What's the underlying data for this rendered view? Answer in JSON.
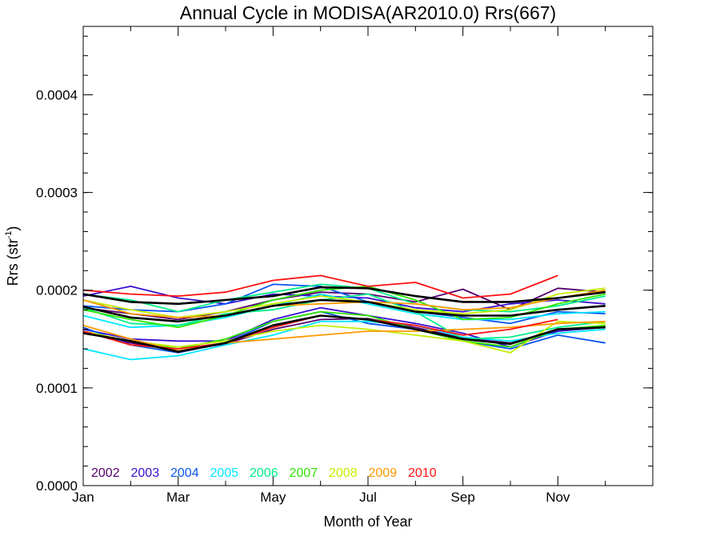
{
  "chart_data": {
    "type": "line",
    "title": "Annual Cycle in MODISA(AR2010.0) Rrs(667)",
    "xlabel": "Month of Year",
    "ylabel_main": "Rrs (str",
    "ylabel_sup": "-1",
    "ylabel_end": ")",
    "xlim": [
      1,
      13
    ],
    "ylim": [
      0,
      0.00047
    ],
    "x_ticks": [
      {
        "v": 1,
        "label": "Jan"
      },
      {
        "v": 3,
        "label": "Mar"
      },
      {
        "v": 5,
        "label": "May"
      },
      {
        "v": 7,
        "label": "Jul"
      },
      {
        "v": 9,
        "label": "Sep"
      },
      {
        "v": 11,
        "label": "Nov"
      }
    ],
    "y_ticks": [
      {
        "v": 0,
        "label": "0.0000"
      },
      {
        "v": 0.0001,
        "label": "0.0001"
      },
      {
        "v": 0.0002,
        "label": "0.0002"
      },
      {
        "v": 0.0003,
        "label": "0.0003"
      },
      {
        "v": 0.0004,
        "label": "0.0004"
      }
    ],
    "x": [
      1,
      2,
      3,
      4,
      5,
      6,
      7,
      8,
      9,
      10,
      11,
      12
    ],
    "legend_position": "bottom-left",
    "legend": [
      {
        "label": "2002",
        "color": "#55006e"
      },
      {
        "label": "2003",
        "color": "#3a10d0"
      },
      {
        "label": "2004",
        "color": "#0a55f0"
      },
      {
        "label": "2005",
        "color": "#00e6ff"
      },
      {
        "label": "2006",
        "color": "#00ef8a"
      },
      {
        "label": "2007",
        "color": "#2ee600"
      },
      {
        "label": "2008",
        "color": "#c2f000"
      },
      {
        "label": "2009",
        "color": "#ff9a00"
      },
      {
        "label": "2010",
        "color": "#ff1010"
      }
    ],
    "series": [
      {
        "color": "#55006e",
        "values": [
          0.000182,
          0.000176,
          0.00017,
          0.000178,
          0.00019,
          0.000198,
          0.000196,
          0.000188,
          0.000201,
          0.00018,
          0.000202,
          0.000198
        ]
      },
      {
        "color": "#55006e",
        "values": [
          0.000157,
          0.000146,
          0.000138,
          0.000145,
          0.00016,
          0.00017,
          0.000171,
          0.000162,
          0.000151,
          0.000146,
          0.000158,
          0.000163
        ]
      },
      {
        "color": "#3a10d0",
        "values": [
          0.000194,
          0.000204,
          0.000192,
          0.000186,
          0.000196,
          0.000194,
          0.000192,
          0.000182,
          0.000178,
          0.000186,
          0.00019,
          0.000186
        ]
      },
      {
        "color": "#3a10d0",
        "values": [
          0.00016,
          0.00015,
          0.000148,
          0.000148,
          0.00017,
          0.000182,
          0.000174,
          0.000166,
          0.000156,
          0.000142,
          0.000158,
          0.000162
        ]
      },
      {
        "color": "#0a55f0",
        "values": [
          0.000184,
          0.00018,
          0.000178,
          0.000186,
          0.000206,
          0.000204,
          0.000188,
          0.000178,
          0.000172,
          0.000166,
          0.000178,
          0.000176
        ]
      },
      {
        "color": "#0a55f0",
        "values": [
          0.000162,
          0.000144,
          0.000136,
          0.000146,
          0.000168,
          0.000178,
          0.000166,
          0.00016,
          0.000148,
          0.00014,
          0.000154,
          0.000146
        ]
      },
      {
        "color": "#00e6ff",
        "values": [
          0.000174,
          0.000162,
          0.000164,
          0.000172,
          0.000184,
          0.000196,
          0.000186,
          0.000176,
          0.00017,
          0.00017,
          0.000176,
          0.000178
        ]
      },
      {
        "color": "#00e6ff",
        "values": [
          0.00014,
          0.000129,
          0.000133,
          0.000144,
          0.000154,
          0.000168,
          0.000168,
          0.000164,
          0.000152,
          0.000148,
          0.000156,
          0.00016
        ]
      },
      {
        "color": "#00ef8a",
        "values": [
          0.000196,
          0.00019,
          0.000178,
          0.00019,
          0.000198,
          0.000206,
          0.000202,
          0.000186,
          0.00018,
          0.000178,
          0.000184,
          0.000194
        ]
      },
      {
        "color": "#00ef8a",
        "values": [
          0.000182,
          0.000166,
          0.000164,
          0.000176,
          0.00018,
          0.00019,
          0.000196,
          0.000178,
          0.00015,
          0.000152,
          0.000162,
          0.000168
        ]
      },
      {
        "color": "#2ee600",
        "values": [
          0.00018,
          0.00017,
          0.000162,
          0.000174,
          0.00019,
          0.0002,
          0.000204,
          0.00019,
          0.00017,
          0.000172,
          0.000186,
          0.000196
        ]
      },
      {
        "color": "#2ee600",
        "values": [
          0.000156,
          0.000148,
          0.00014,
          0.00015,
          0.000168,
          0.000178,
          0.000174,
          0.00016,
          0.000148,
          0.000142,
          0.00016,
          0.000164
        ]
      },
      {
        "color": "#c2f000",
        "values": [
          0.00019,
          0.00018,
          0.000172,
          0.000178,
          0.000186,
          0.000194,
          0.000188,
          0.00018,
          0.000176,
          0.00018,
          0.000196,
          0.000202
        ]
      },
      {
        "color": "#c2f000",
        "values": [
          0.000158,
          0.000148,
          0.000142,
          0.000148,
          0.000158,
          0.000164,
          0.00016,
          0.000154,
          0.000148,
          0.000136,
          0.000168,
          0.000166
        ]
      },
      {
        "color": "#ff9a00",
        "values": [
          0.000164,
          0.00015,
          0.000138,
          0.000146,
          0.00015,
          0.000154,
          0.000158,
          0.000158,
          0.00016,
          0.000162,
          0.000166,
          0.000168
        ]
      },
      {
        "color": "#ff9a00",
        "values": [
          0.00019,
          0.000176,
          0.000172,
          0.000174,
          0.000184,
          0.000186,
          0.000188,
          0.000186,
          0.00018,
          0.000182,
          0.000192,
          0.0002
        ]
      },
      {
        "color": "#ff1010",
        "values": [
          0.0002,
          0.000196,
          0.000194,
          0.000198,
          0.00021,
          0.000215,
          0.000204,
          0.000208,
          0.000192,
          0.000196,
          0.000215,
          null
        ]
      },
      {
        "color": "#ff1010",
        "values": [
          0.000158,
          0.000144,
          0.00014,
          0.000146,
          0.000162,
          0.000174,
          0.00017,
          0.000164,
          0.000154,
          0.00016,
          0.00017,
          null
        ]
      },
      {
        "color": "#000000",
        "values": [
          0.000196,
          0.000188,
          0.000186,
          0.00019,
          0.000194,
          0.000203,
          0.000202,
          0.000194,
          0.000188,
          0.000188,
          0.000192,
          0.000198
        ]
      },
      {
        "color": "#000000",
        "values": [
          0.000183,
          0.000172,
          0.000168,
          0.000174,
          0.000184,
          0.00019,
          0.000188,
          0.000178,
          0.000174,
          0.000174,
          0.00018,
          0.000184
        ]
      },
      {
        "color": "#000000",
        "values": [
          0.000156,
          0.000148,
          0.000137,
          0.000146,
          0.000164,
          0.000174,
          0.00017,
          0.00016,
          0.00015,
          0.000145,
          0.00016,
          0.000162
        ]
      }
    ]
  }
}
